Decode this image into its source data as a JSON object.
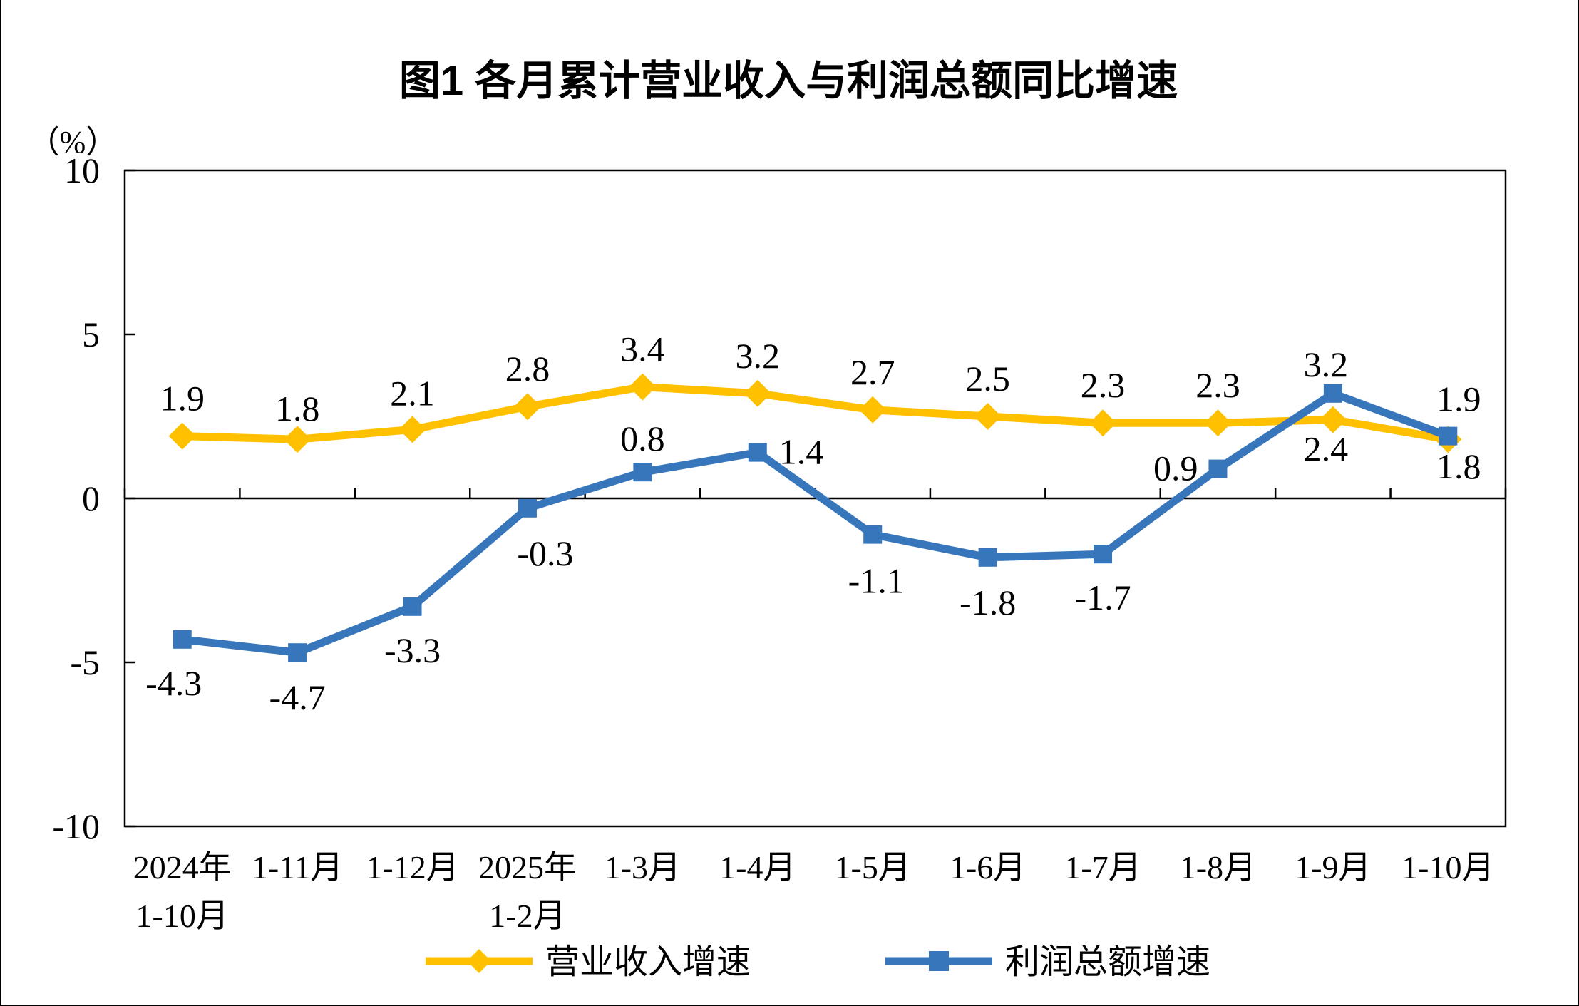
{
  "figure": {
    "border_color": "#000000",
    "background": "#ffffff"
  },
  "chart_data": {
    "type": "line",
    "title": "图1  各月累计营业收入与利润总额同比增速",
    "ylabel": "（%）",
    "xlabel": "",
    "ylim": [
      -10,
      10
    ],
    "yticks": [
      10,
      5,
      0,
      -5,
      -10
    ],
    "grid": false,
    "zero_axis_line": true,
    "legend_position": "bottom",
    "axis_color": "#000000",
    "categories": [
      [
        "2024年",
        "1-10月"
      ],
      [
        "1-11月"
      ],
      [
        "1-12月"
      ],
      [
        "2025年",
        "1-2月"
      ],
      [
        "1-3月"
      ],
      [
        "1-4月"
      ],
      [
        "1-5月"
      ],
      [
        "1-6月"
      ],
      [
        "1-7月"
      ],
      [
        "1-8月"
      ],
      [
        "1-9月"
      ],
      [
        "1-10月"
      ]
    ],
    "series": [
      {
        "name": "营业收入增速",
        "color": "#FFC000",
        "marker": "diamond",
        "values": [
          1.9,
          1.8,
          2.1,
          2.8,
          3.4,
          3.2,
          2.7,
          2.5,
          2.3,
          2.3,
          2.4,
          1.8
        ]
      },
      {
        "name": "利润总额增速",
        "color": "#3876BC",
        "marker": "square",
        "values": [
          -4.3,
          -4.7,
          -3.3,
          -0.3,
          0.8,
          1.4,
          -1.1,
          -1.8,
          -1.7,
          0.9,
          3.2,
          1.9
        ]
      }
    ]
  }
}
